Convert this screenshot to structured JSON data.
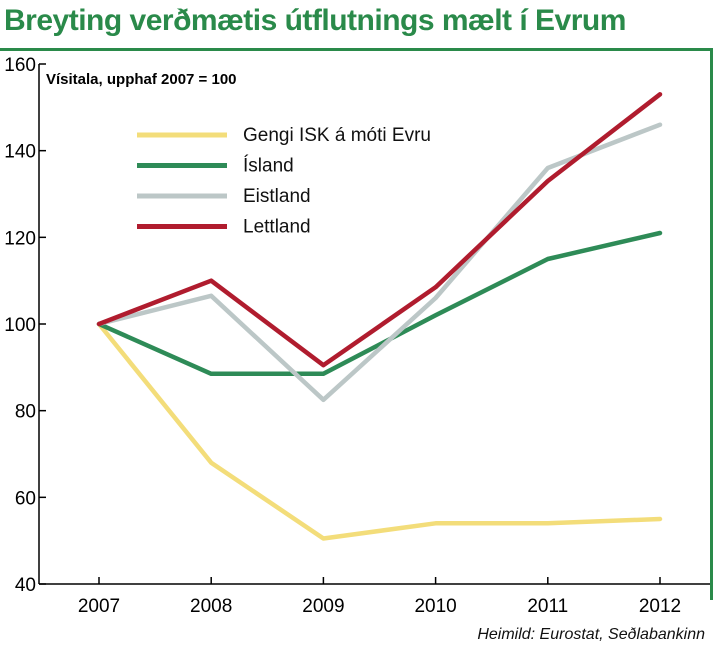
{
  "title": "Breyting verðmætis útflutnings mælt í Evrum",
  "source": "Heimild: Eurostat, Seðlabankinn",
  "colors": {
    "title": "#2a8a4a",
    "axis": "#000000"
  },
  "chart_data": {
    "type": "line",
    "title": "Breyting verðmætis útflutnings mælt í Evrum",
    "ylabel": "Vísitala, upphaf 2007 = 100",
    "xlabel": "",
    "x": [
      "2007",
      "2008",
      "2009",
      "2010",
      "2011",
      "2012"
    ],
    "ylim": [
      40,
      160
    ],
    "yticks": [
      40,
      60,
      80,
      100,
      120,
      140,
      160
    ],
    "grid": false,
    "legend_position": "top-left",
    "series": [
      {
        "name": "Gengi ISK á móti Evru",
        "color": "#f3dd7a",
        "values": [
          100,
          68,
          50.5,
          54,
          54,
          55
        ]
      },
      {
        "name": "Ísland",
        "color": "#2e8b57",
        "values": [
          100,
          88.5,
          88.5,
          102,
          115,
          121
        ]
      },
      {
        "name": "Eistland",
        "color": "#bcc7c7",
        "values": [
          100,
          106.5,
          82.5,
          106,
          136,
          146
        ]
      },
      {
        "name": "Lettland",
        "color": "#b01c2e",
        "values": [
          100,
          110,
          90.5,
          108.5,
          133,
          153
        ]
      }
    ]
  }
}
